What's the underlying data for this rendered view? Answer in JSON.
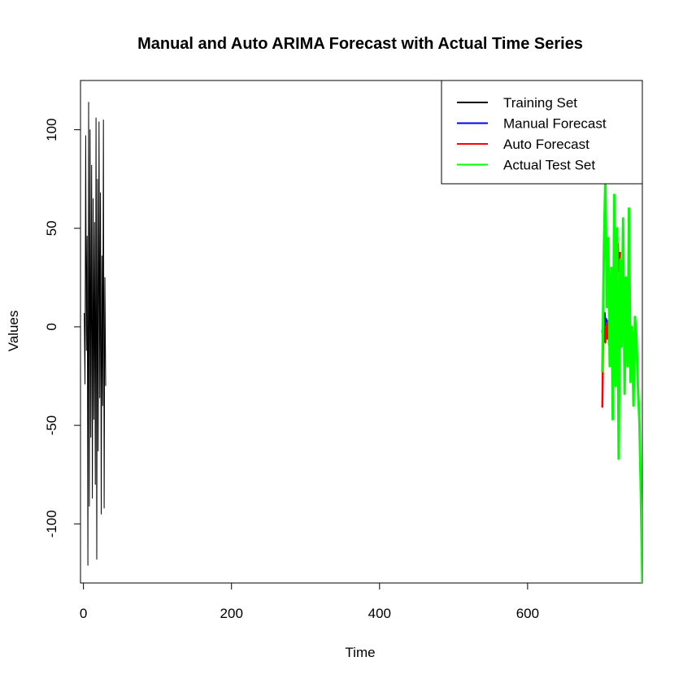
{
  "chart_data": {
    "type": "line",
    "title": "Manual and Auto ARIMA Forecast with Actual Time Series",
    "xlabel": "Time",
    "ylabel": "Values",
    "xlim": [
      -4,
      755
    ],
    "ylim": [
      -130,
      125
    ],
    "x_ticks": [
      0,
      200,
      400,
      600
    ],
    "y_ticks": [
      -100,
      -50,
      0,
      50,
      100
    ],
    "grid": false,
    "legend_position": "top-right",
    "series": [
      {
        "name": "Training Set",
        "color": "#000000",
        "x": [
          1,
          2,
          3,
          4,
          5,
          6,
          7,
          8,
          9,
          10,
          11,
          12,
          13,
          14,
          15,
          16,
          17,
          18,
          19,
          20,
          21,
          22,
          23,
          24,
          25,
          26,
          27,
          28,
          29,
          30
        ],
        "values": [
          7,
          -29,
          97,
          -12,
          46,
          -121,
          114,
          -91,
          100,
          -56,
          82,
          -87,
          65,
          -47,
          53,
          -80,
          106,
          -118,
          75,
          -63,
          104,
          -36,
          68,
          -95,
          36,
          -40,
          105,
          -92,
          25,
          -30
        ]
      },
      {
        "name": "Manual Forecast",
        "color": "#0000ff",
        "x": [
          701,
          702,
          703,
          704,
          705,
          706,
          707,
          708,
          709,
          710,
          711,
          712,
          713,
          714,
          715,
          716,
          717,
          718,
          719,
          720,
          721,
          722,
          723,
          724,
          725
        ],
        "values": [
          -3,
          2,
          -2,
          7,
          1,
          4,
          -2,
          3,
          1,
          2,
          -1,
          1,
          0,
          1,
          0,
          1,
          0,
          1,
          0,
          1,
          0,
          1,
          0,
          1,
          0
        ]
      },
      {
        "name": "Auto Forecast",
        "color": "#ff0000",
        "x": [
          701,
          702,
          703,
          704,
          705,
          706,
          707,
          708,
          709,
          710,
          711,
          712,
          713,
          714,
          715,
          716,
          717,
          718,
          719,
          720,
          721,
          722,
          723,
          724,
          725
        ],
        "values": [
          -41,
          -10,
          3,
          -2,
          -8,
          -3,
          2,
          -6,
          3,
          -9,
          1,
          3,
          -2,
          6,
          -3,
          3,
          0,
          44,
          25,
          37,
          43,
          42,
          28,
          30,
          38
        ]
      },
      {
        "name": "Actual Test Set",
        "color": "#00ff00",
        "x": [
          701,
          703,
          705,
          707,
          709,
          711,
          713,
          715,
          717,
          719,
          721,
          723,
          725,
          727,
          729,
          731,
          733,
          735,
          737,
          739,
          741,
          743,
          745,
          747,
          749,
          751,
          753,
          755
        ],
        "values": [
          -23,
          40,
          75,
          10,
          45,
          -20,
          30,
          -47,
          67,
          -30,
          50,
          -67,
          34,
          -10,
          55,
          -34,
          25,
          -20,
          60,
          -28,
          0,
          -40,
          5,
          -5,
          -30,
          -48,
          -85,
          -130
        ]
      }
    ]
  }
}
